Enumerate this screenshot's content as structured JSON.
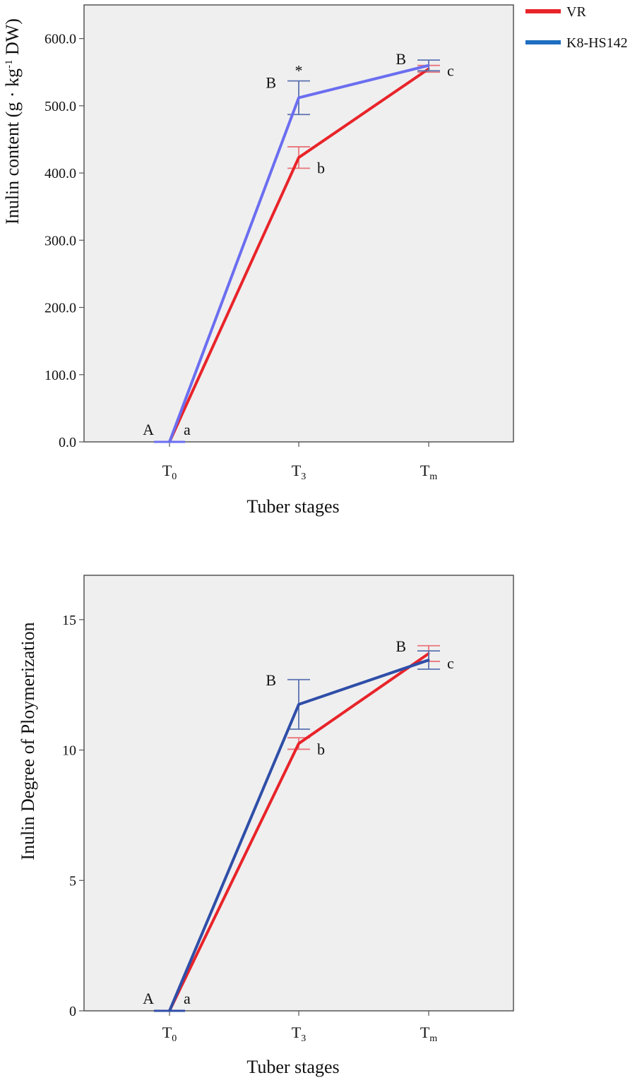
{
  "legend": [
    {
      "label": "VR",
      "color": "#e8242a"
    },
    {
      "label": "K8-HS142",
      "color": "#1f6fc0"
    }
  ],
  "chart_data": [
    {
      "type": "line",
      "xlabel": "Tuber stages",
      "ylabel": "Inulin content (g · kg",
      "ylabel_sup": "-1",
      "ylabel_tail": " DW)",
      "categories": [
        {
          "base": "T",
          "sub": "0"
        },
        {
          "base": "T",
          "sub": "3"
        },
        {
          "base": "T",
          "sub": "m"
        }
      ],
      "ylim": [
        0,
        650
      ],
      "yticks": [
        0,
        100,
        200,
        300,
        400,
        500,
        600
      ],
      "ytick_labels": [
        "0.0",
        "100.0",
        "200.0",
        "300.0",
        "400.0",
        "500.0",
        "600.0"
      ],
      "series": [
        {
          "name": "VR",
          "color": "#e8242a",
          "errcolor": "#e9757b",
          "values": [
            0,
            423,
            555
          ],
          "errors": [
            0,
            16,
            5
          ]
        },
        {
          "name": "K8-HS142",
          "color": "#6b6ef0",
          "errcolor": "#5a72b0",
          "values": [
            0,
            512,
            560
          ],
          "errors": [
            0,
            25,
            8
          ]
        }
      ],
      "annotations": [
        {
          "text": "A",
          "x": 0,
          "y": 0,
          "pos": "upper-left"
        },
        {
          "text": "a",
          "x": 0,
          "y": 0,
          "pos": "right"
        },
        {
          "text": "B",
          "x": 1,
          "y": 535,
          "pos": "left"
        },
        {
          "text": "*",
          "x": 1,
          "y": 537,
          "pos": "above"
        },
        {
          "text": "b",
          "x": 1,
          "y": 410,
          "pos": "right"
        },
        {
          "text": "B",
          "x": 2,
          "y": 570,
          "pos": "left"
        },
        {
          "text": "c",
          "x": 2,
          "y": 555,
          "pos": "right"
        }
      ]
    },
    {
      "type": "line",
      "xlabel": "Tuber stages",
      "ylabel": "Inulin Degree of Ploymerization",
      "categories": [
        {
          "base": "T",
          "sub": "0"
        },
        {
          "base": "T",
          "sub": "3"
        },
        {
          "base": "T",
          "sub": "m"
        }
      ],
      "ylim": [
        0,
        16.7
      ],
      "yticks": [
        0,
        5,
        10,
        15
      ],
      "ytick_labels": [
        "0",
        "5",
        "10",
        "15"
      ],
      "series": [
        {
          "name": "VR",
          "color": "#e8242a",
          "errcolor": "#e9757b",
          "values": [
            0,
            10.25,
            13.7
          ],
          "errors": [
            0,
            0.22,
            0.3
          ]
        },
        {
          "name": "K8-HS142",
          "color": "#2f4ea8",
          "errcolor": "#5a72b0",
          "values": [
            0,
            11.75,
            13.45
          ],
          "errors": [
            0,
            0.95,
            0.35
          ]
        }
      ],
      "annotations": [
        {
          "text": "A",
          "x": 0,
          "y": 0,
          "pos": "upper-left"
        },
        {
          "text": "a",
          "x": 0,
          "y": 0,
          "pos": "right"
        },
        {
          "text": "B",
          "x": 1,
          "y": 12.7,
          "pos": "left"
        },
        {
          "text": "b",
          "x": 1,
          "y": 10.1,
          "pos": "right"
        },
        {
          "text": "B",
          "x": 2,
          "y": 14.0,
          "pos": "left"
        },
        {
          "text": "c",
          "x": 2,
          "y": 13.4,
          "pos": "right"
        }
      ]
    }
  ]
}
